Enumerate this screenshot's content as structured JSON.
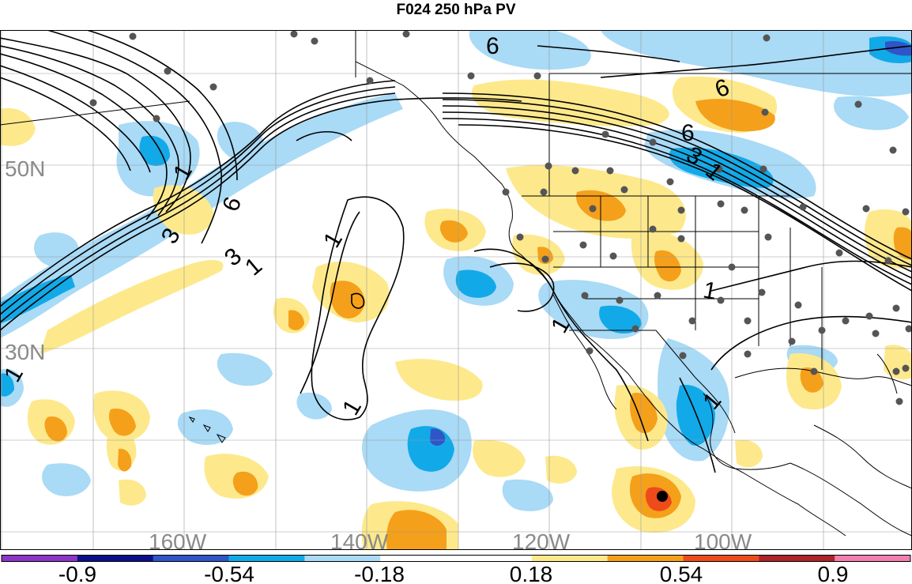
{
  "title": "F024 250 hPa PV",
  "latitude_labels": [
    "50N",
    "30N"
  ],
  "longitude_labels": [
    "160W",
    "140W",
    "120W",
    "100W"
  ],
  "contour_labels": [
    "6",
    "6",
    "6",
    "6",
    "3",
    "3",
    "3",
    "1",
    "1",
    "1",
    "1",
    "1",
    "1",
    "1",
    "1",
    "1"
  ],
  "colorbar": {
    "colors": [
      "#8c35c8",
      "#0c0f8a",
      "#2f56c8",
      "#12a9e8",
      "#a9daf6",
      "#ffffff",
      "#ffffff",
      "#fde98c",
      "#f5a01a",
      "#ee4b1c",
      "#b0232a",
      "#f27fb0"
    ],
    "tick_labels": [
      "-0.9",
      "-0.54",
      "-0.18",
      "0.18",
      "0.54",
      "0.9"
    ]
  },
  "colors": {
    "negative_light": "#a9daf6",
    "negative_mid": "#12a9e8",
    "negative_strong": "#2f56c8",
    "positive_light": "#fde98c",
    "positive_mid": "#f5a01a",
    "positive_strong": "#ee4b1c",
    "contour": "#000000",
    "gridline": "#9a9a9a",
    "station_dot": "#555555"
  }
}
